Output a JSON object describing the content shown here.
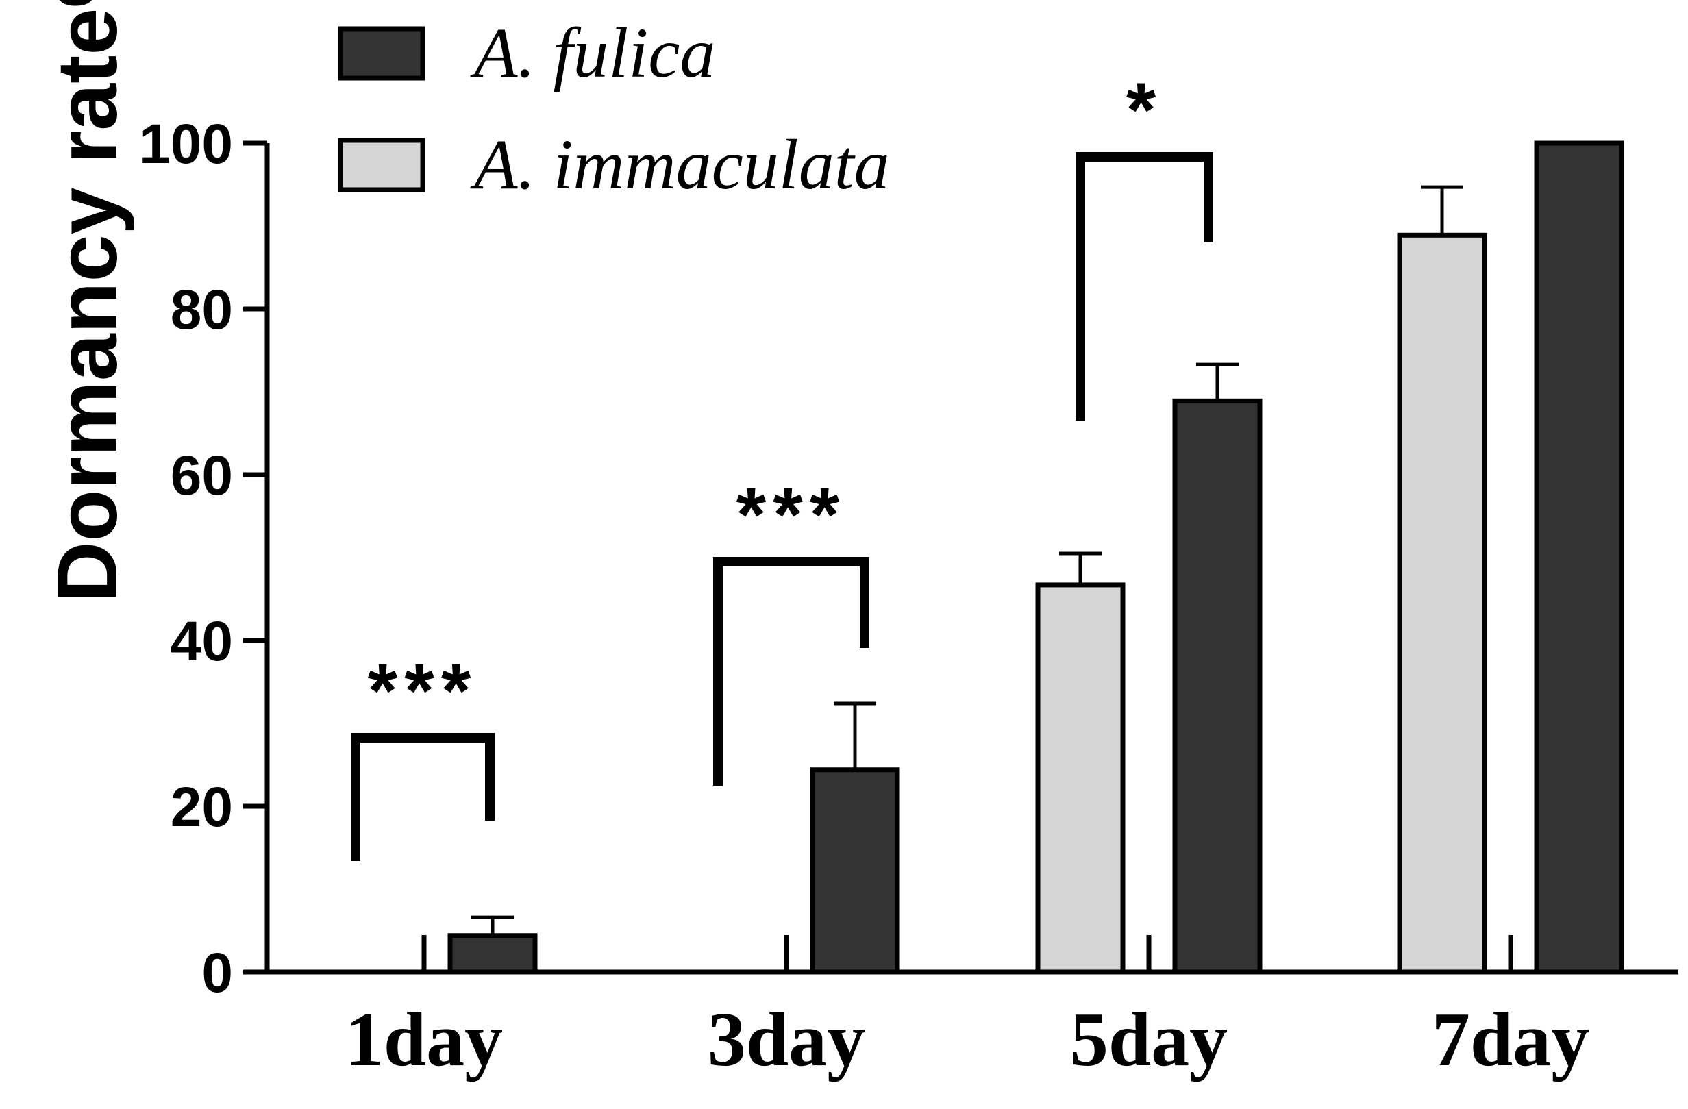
{
  "chart_data": {
    "type": "bar",
    "title": "",
    "xlabel": "",
    "ylabel": "Dormancy rate%",
    "ylim": [
      0,
      100
    ],
    "yticks": [
      "0",
      "20",
      "40",
      "60",
      "80",
      "100"
    ],
    "categories": [
      "1day",
      "3day",
      "5day",
      "7day"
    ],
    "series": [
      {
        "name": "A. immaculata",
        "color": "#d6d6d6",
        "values": [
          0,
          0,
          46.7,
          88.9
        ],
        "errors": [
          0,
          0,
          3.8,
          5.8
        ]
      },
      {
        "name": "A. fulica",
        "color": "#333333",
        "values": [
          4.4,
          24.4,
          68.9,
          100
        ],
        "errors": [
          2.2,
          8.0,
          4.4,
          0
        ]
      }
    ],
    "legend": {
      "position": "top-left",
      "entries": [
        "A. fulica",
        "A. immaculata"
      ]
    },
    "significance": [
      {
        "category": "1day",
        "label": "***"
      },
      {
        "category": "3day",
        "label": "***"
      },
      {
        "category": "5day",
        "label": "*"
      }
    ]
  }
}
